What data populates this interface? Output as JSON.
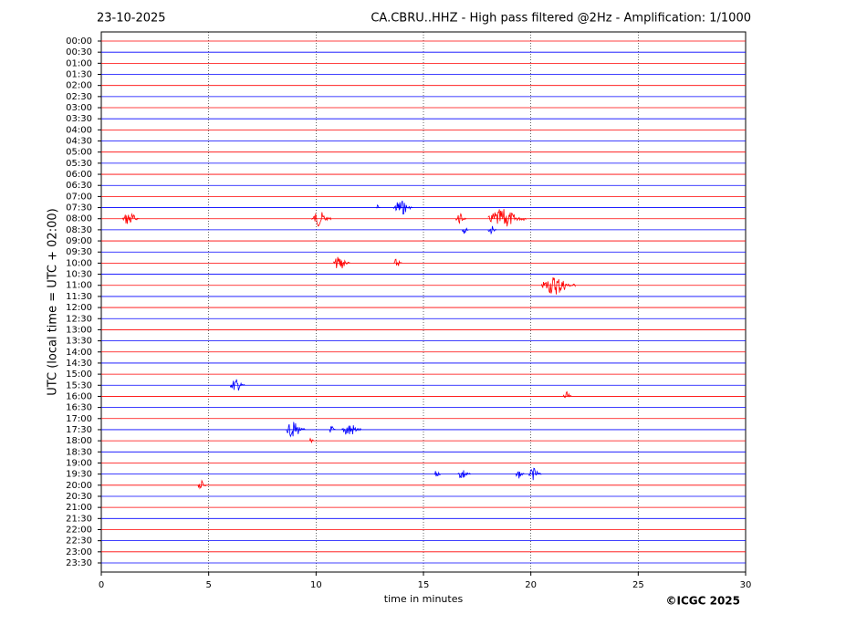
{
  "chart_data": {
    "type": "helicorder",
    "date": "23-10-2025",
    "title": "CA.CBRU..HHZ - High pass filtered @2Hz - Amplification: 1/1000",
    "ylabel": "UTC (local time = UTC + 02:00)",
    "xlabel": "time in minutes",
    "copyright": "©ICGC 2025",
    "categories": [
      "00:00",
      "00:30",
      "01:00",
      "01:30",
      "02:00",
      "02:30",
      "03:00",
      "03:30",
      "04:00",
      "04:30",
      "05:00",
      "05:30",
      "06:00",
      "06:30",
      "07:00",
      "07:30",
      "08:00",
      "08:30",
      "09:00",
      "09:30",
      "10:00",
      "10:30",
      "11:00",
      "11:30",
      "12:00",
      "12:30",
      "13:00",
      "13:30",
      "14:00",
      "14:30",
      "15:00",
      "15:30",
      "16:00",
      "16:30",
      "17:00",
      "17:30",
      "18:00",
      "18:30",
      "19:00",
      "19:30",
      "20:00",
      "20:30",
      "21:00",
      "21:30",
      "22:00",
      "22:30",
      "23:00",
      "23:30"
    ],
    "colors": [
      "#ff0000",
      "#0000ff"
    ],
    "xlim": [
      0,
      30
    ],
    "xticks": [
      0,
      5,
      10,
      15,
      20,
      25,
      30
    ],
    "grid": true,
    "events": [
      {
        "row": 15,
        "start": 12.8,
        "end": 13.0
      },
      {
        "row": 15,
        "start": 13.6,
        "end": 14.5
      },
      {
        "row": 16,
        "start": 1.0,
        "end": 1.8
      },
      {
        "row": 16,
        "start": 9.8,
        "end": 10.7
      },
      {
        "row": 16,
        "start": 16.5,
        "end": 17.0
      },
      {
        "row": 16,
        "start": 18.0,
        "end": 19.8
      },
      {
        "row": 17,
        "start": 16.8,
        "end": 17.1
      },
      {
        "row": 17,
        "start": 18.0,
        "end": 18.4
      },
      {
        "row": 20,
        "start": 10.8,
        "end": 11.6
      },
      {
        "row": 20,
        "start": 13.6,
        "end": 14.0
      },
      {
        "row": 22,
        "start": 20.5,
        "end": 22.1
      },
      {
        "row": 31,
        "start": 6.0,
        "end": 6.7
      },
      {
        "row": 32,
        "start": 21.5,
        "end": 21.9
      },
      {
        "row": 35,
        "start": 8.6,
        "end": 9.5
      },
      {
        "row": 35,
        "start": 10.6,
        "end": 10.9
      },
      {
        "row": 35,
        "start": 11.2,
        "end": 12.1
      },
      {
        "row": 36,
        "start": 9.7,
        "end": 9.9
      },
      {
        "row": 39,
        "start": 15.5,
        "end": 15.8
      },
      {
        "row": 39,
        "start": 16.6,
        "end": 17.2
      },
      {
        "row": 39,
        "start": 19.3,
        "end": 19.7
      },
      {
        "row": 39,
        "start": 19.9,
        "end": 20.5
      },
      {
        "row": 40,
        "start": 4.5,
        "end": 4.9
      }
    ]
  }
}
